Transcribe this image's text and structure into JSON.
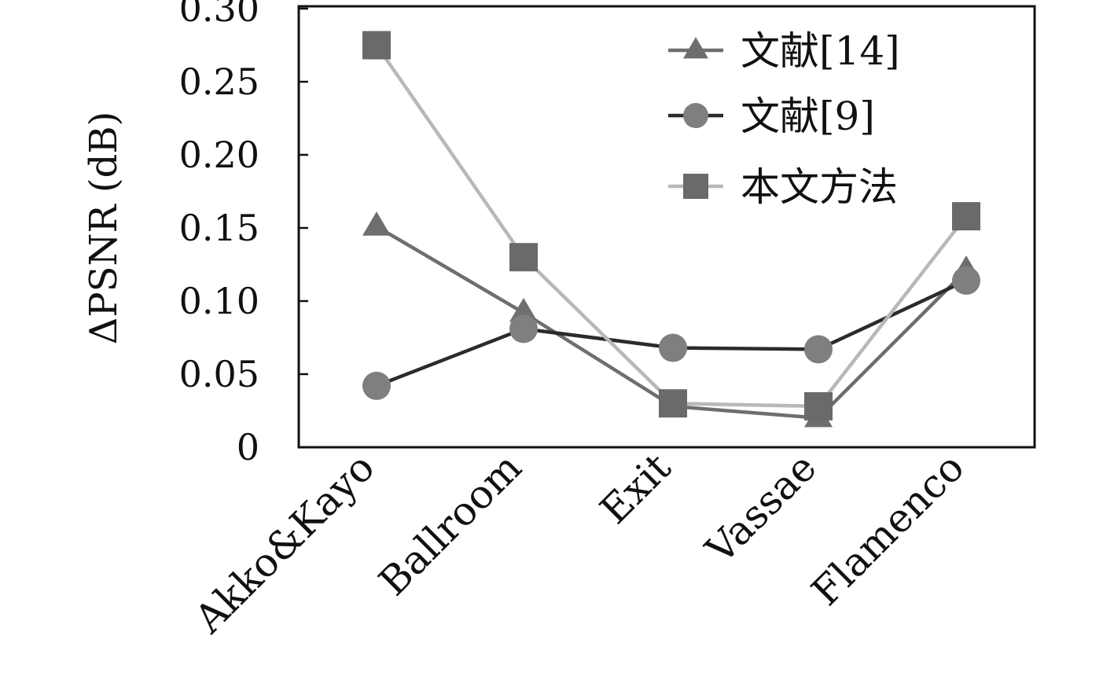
{
  "chart_data": {
    "type": "line",
    "ylabel": "ΔPSNR (dB)",
    "ylim": [
      0,
      0.3
    ],
    "yticks": [
      0,
      0.05,
      0.1,
      0.15,
      0.2,
      0.25,
      0.3
    ],
    "ytick_labels": [
      "0",
      "0.05",
      "0.10",
      "0.15",
      "0.20",
      "0.25",
      "0.30"
    ],
    "categories": [
      "Akko&Kayo",
      "Ballroom",
      "Exit",
      "Vassae",
      "Flamenco"
    ],
    "series": [
      {
        "name": "文献[14]",
        "marker": "triangle",
        "color": "#6e6e6e",
        "line_color": "#6e6e6e",
        "values": [
          0.151,
          0.092,
          0.028,
          0.02,
          0.121
        ]
      },
      {
        "name": "文献[9]",
        "marker": "circle",
        "color": "#7f7f7f",
        "line_color": "#2b2b2b",
        "values": [
          0.042,
          0.081,
          0.068,
          0.067,
          0.114
        ]
      },
      {
        "name": "本文方法",
        "marker": "square",
        "color": "#6a6a6a",
        "line_color": "#b8b8b8",
        "values": [
          0.275,
          0.13,
          0.03,
          0.028,
          0.158
        ]
      }
    ],
    "grid": false,
    "legend_position": "top-right"
  }
}
